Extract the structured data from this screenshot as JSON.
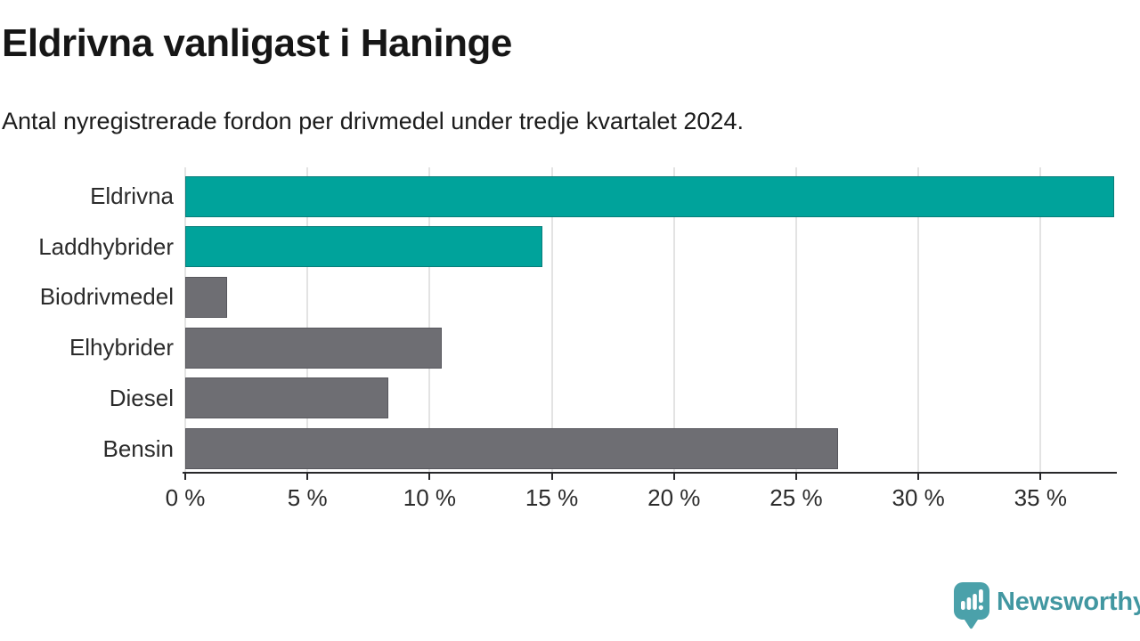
{
  "header": {
    "title": "Eldrivna vanligast i Haninge",
    "subtitle": "Antal nyregistrerade fordon per drivmedel under tredje kvartalet 2024."
  },
  "chart_data": {
    "type": "bar",
    "orientation": "horizontal",
    "title": "Eldrivna vanligast i Haninge",
    "subtitle": "Antal nyregistrerade fordon per drivmedel under tredje kvartalet 2024.",
    "categories": [
      "Eldrivna",
      "Laddhybrider",
      "Biodrivmedel",
      "Elhybrider",
      "Diesel",
      "Bensin"
    ],
    "values": [
      38.0,
      14.6,
      1.7,
      10.5,
      8.3,
      26.7
    ],
    "unit": "%",
    "bar_colors": [
      "#00A39B",
      "#00A39B",
      "#6E6E73",
      "#6E6E73",
      "#6E6E73",
      "#6E6E73"
    ],
    "highlight_color": "#00A39B",
    "default_color": "#6E6E73",
    "xlabel": "",
    "ylabel": "",
    "xlim": [
      0,
      38.05
    ],
    "x_ticks": [
      0,
      5,
      10,
      15,
      20,
      25,
      30,
      35
    ],
    "x_tick_labels": [
      "0 %",
      "5 %",
      "10 %",
      "15 %",
      "20 %",
      "25 %",
      "30 %",
      "35 %"
    ],
    "grid": "vertical",
    "gridline_color": "#e3e3e3",
    "axis_color": "#28282a",
    "legend": "none"
  },
  "footer": {
    "brand": "Newsworthy",
    "brand_color": "#4297A1",
    "icon_color": "#4BA1AA",
    "icon_name": "newsworthy-chart-bubble-icon"
  }
}
